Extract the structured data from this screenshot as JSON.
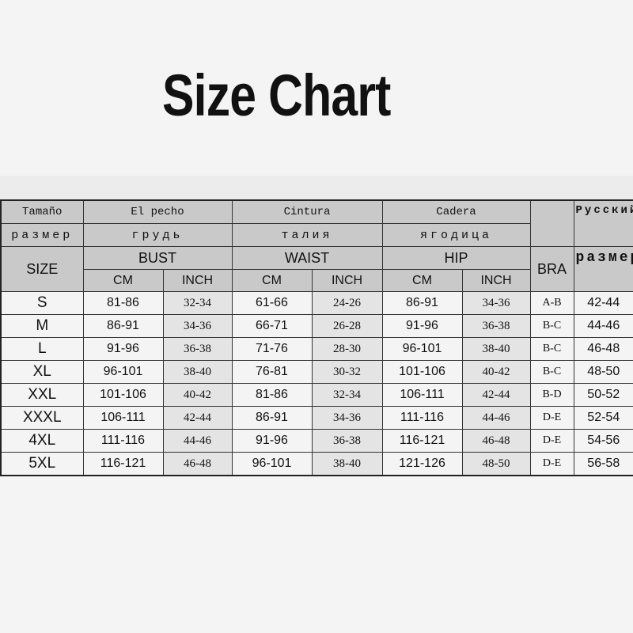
{
  "title": "Size Chart",
  "header": {
    "row1": {
      "size": "Tamaño",
      "bust": "El pecho",
      "waist": "Cintura",
      "hip": "Cadera",
      "ru": "Русский"
    },
    "row2": {
      "size": "размер",
      "bust": "грудь",
      "waist": "талия",
      "hip": "ягодица"
    },
    "row3": {
      "size": "SIZE",
      "bust": "BUST",
      "waist": "WAIST",
      "hip": "HIP",
      "bra": "BRA",
      "ru": "размер"
    },
    "units": [
      "CM",
      "INCH",
      "CM",
      "INCH",
      "CM",
      "INCH"
    ]
  },
  "rows": [
    [
      "S",
      "81-86",
      "32-34",
      "61-66",
      "24-26",
      "86-91",
      "34-36",
      "A-B",
      "42-44"
    ],
    [
      "M",
      "86-91",
      "34-36",
      "66-71",
      "26-28",
      "91-96",
      "36-38",
      "B-C",
      "44-46"
    ],
    [
      "L",
      "91-96",
      "36-38",
      "71-76",
      "28-30",
      "96-101",
      "38-40",
      "B-C",
      "46-48"
    ],
    [
      "XL",
      "96-101",
      "38-40",
      "76-81",
      "30-32",
      "101-106",
      "40-42",
      "B-C",
      "48-50"
    ],
    [
      "XXL",
      "101-106",
      "40-42",
      "81-86",
      "32-34",
      "106-111",
      "42-44",
      "B-D",
      "50-52"
    ],
    [
      "XXXL",
      "106-111",
      "42-44",
      "86-91",
      "34-36",
      "111-116",
      "44-46",
      "D-E",
      "52-54"
    ],
    [
      "4XL",
      "111-116",
      "44-46",
      "91-96",
      "36-38",
      "116-121",
      "46-48",
      "D-E",
      "54-56"
    ],
    [
      "5XL",
      "116-121",
      "46-48",
      "96-101",
      "38-40",
      "121-126",
      "48-50",
      "D-E",
      "56-58"
    ]
  ]
}
